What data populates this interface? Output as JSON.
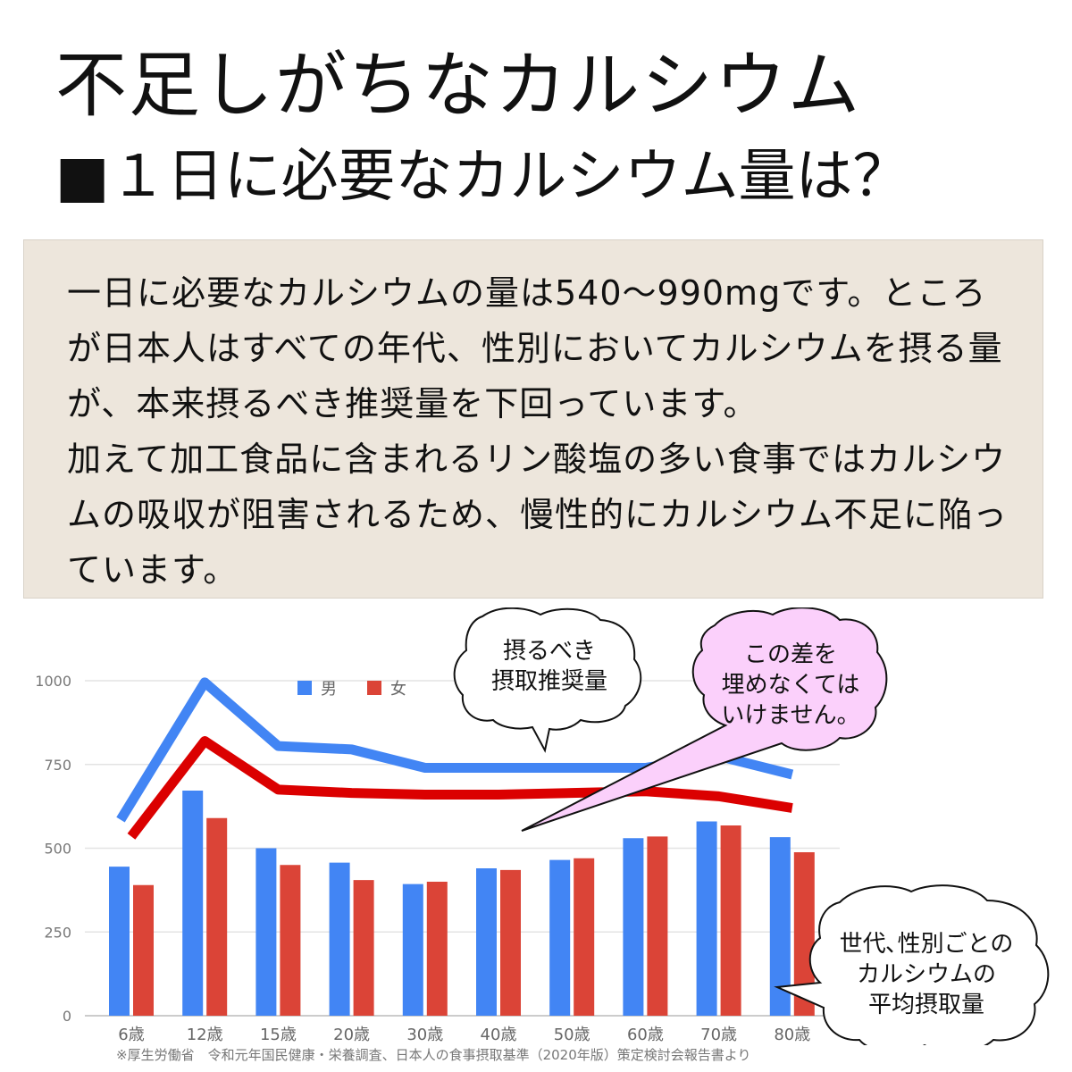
{
  "title": "不足しがちなカルシウム",
  "subtitle": "■１日に必要なカルシウム量は？",
  "info": {
    "paragraph1": "一日に必要なカルシウムの量は540〜990mgです。ところが日本人はすべての年代、性別においてカルシウムを摂る量が、本来摂るべき推奨量を下回っています。",
    "paragraph2": "加えて加工食品に含まれるリン酸塩の多い食事ではカルシウムの吸収が阻害されるため、慢性的にカルシウム不足に陥っています。"
  },
  "chart_data": {
    "type": "bar",
    "categories": [
      "6歳",
      "12歳",
      "15歳",
      "20歳",
      "30歳",
      "40歳",
      "50歳",
      "60歳",
      "70歳",
      "80歳"
    ],
    "ylim": [
      0,
      1000
    ],
    "yticks": [
      0,
      250,
      500,
      750,
      1000
    ],
    "series": [
      {
        "name": "男",
        "color": "#4285f4",
        "values": [
          445,
          672,
          500,
          457,
          393,
          440,
          465,
          530,
          580,
          533
        ]
      },
      {
        "name": "女",
        "color": "#db4437",
        "values": [
          390,
          590,
          450,
          405,
          400,
          435,
          470,
          535,
          568,
          488
        ]
      }
    ],
    "recommended": [
      {
        "name": "男",
        "color": "#4285f4",
        "values": [
          585,
          995,
          805,
          795,
          740,
          740,
          740,
          740,
          775,
          720
        ]
      },
      {
        "name": "女",
        "color": "#db0000",
        "values": [
          535,
          820,
          675,
          665,
          660,
          660,
          665,
          670,
          655,
          620
        ]
      }
    ],
    "legend_position": "top",
    "grid": true
  },
  "bubbles": {
    "recommended": "摂るべき\n摂取推奨量",
    "gap": "この差を\n埋めなくては\nいけません。",
    "average": "世代､性別ごとの\nカルシウムの\n平均摂取量"
  },
  "source_note": "※厚生労働省　令和元年国民健康・栄養調査、日本人の食事摂取基準（2020年版）策定検討会報告書より",
  "colors": {
    "male": "#4285f4",
    "female": "#db4437",
    "box_bg": "#ede6dc",
    "gap_bubble": "#fbd0fb"
  }
}
